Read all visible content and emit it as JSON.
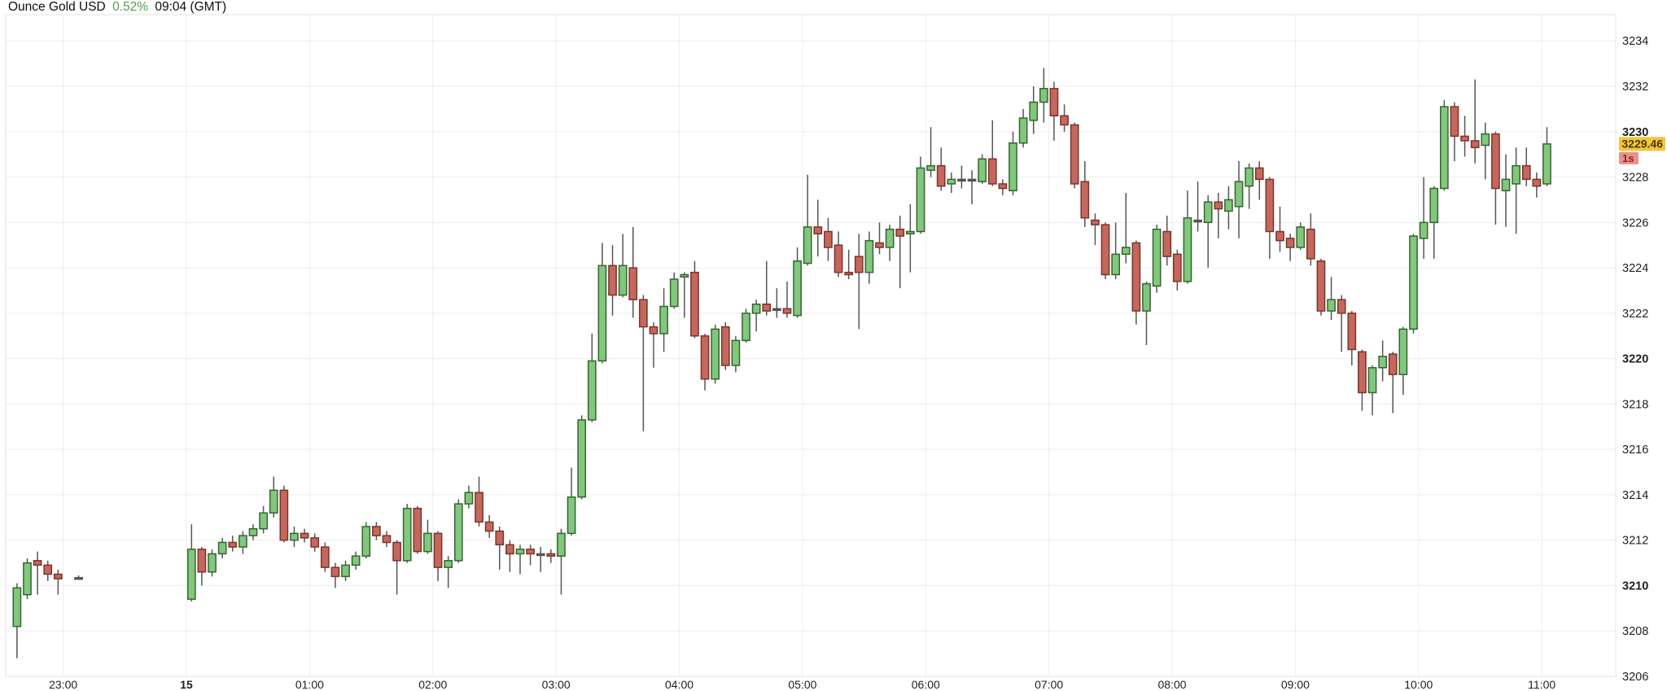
{
  "header": {
    "symbol": "Ounce Gold USD",
    "change": "0.52%",
    "timestamp": "09:04 (GMT)"
  },
  "colors": {
    "up_fill": "#83c77e",
    "up_border": "#33662f",
    "down_fill": "#c4685e",
    "down_border": "#7c332b",
    "doji": "#555555",
    "wick": "#555555",
    "grid": "#ededed",
    "plot_border": "#e3e3e3",
    "axis_text": "#1f1f1f",
    "change_up": "#4fa050",
    "price_tag_bg": "#f3c53b",
    "price_tag_text": "#4d3a00",
    "countdown_bg": "#e79289",
    "countdown_text": "#8c2420"
  },
  "chart_data": {
    "type": "candlestick",
    "title": "Ounce Gold USD",
    "interval_minutes": 5,
    "grid": true,
    "ylim": [
      3206.0,
      3235.3
    ],
    "xlim_minutes": [
      -88,
      696
    ],
    "y_ticks": [
      3234,
      3232,
      3230,
      3228,
      3226,
      3224,
      3222,
      3220,
      3218,
      3216,
      3214,
      3212,
      3210,
      3208,
      3206
    ],
    "y_bold_multiple": 10,
    "x_ticks": [
      {
        "label": "23:00",
        "m": -60,
        "bold": false
      },
      {
        "label": "15",
        "m": 0,
        "bold": true
      },
      {
        "label": "01:00",
        "m": 60,
        "bold": false
      },
      {
        "label": "02:00",
        "m": 120,
        "bold": false
      },
      {
        "label": "03:00",
        "m": 180,
        "bold": false
      },
      {
        "label": "04:00",
        "m": 240,
        "bold": false
      },
      {
        "label": "05:00",
        "m": 300,
        "bold": false
      },
      {
        "label": "06:00",
        "m": 360,
        "bold": false
      },
      {
        "label": "07:00",
        "m": 420,
        "bold": false
      },
      {
        "label": "08:00",
        "m": 480,
        "bold": false
      },
      {
        "label": "09:00",
        "m": 540,
        "bold": false
      },
      {
        "label": "10:00",
        "m": 600,
        "bold": false
      },
      {
        "label": "11:00",
        "m": 660,
        "bold": false
      }
    ],
    "last_price": 3229.46,
    "last_price_label": "3229.46",
    "countdown_label": "1s",
    "columns": [
      "minutes_from_midnight",
      "open",
      "high",
      "low",
      "close"
    ],
    "candles": [
      [
        -85,
        3208.2,
        3210.1,
        3206.8,
        3209.9
      ],
      [
        -80,
        3209.6,
        3211.2,
        3209.4,
        3211.0
      ],
      [
        -75,
        3211.1,
        3211.5,
        3209.6,
        3210.9
      ],
      [
        -70,
        3210.9,
        3211.1,
        3210.2,
        3210.5
      ],
      [
        -65,
        3210.5,
        3210.7,
        3209.6,
        3210.3
      ],
      [
        -55,
        3210.35,
        3210.45,
        3210.3,
        3210.35
      ],
      [
        0,
        3209.4,
        3212.7,
        3209.3,
        3211.6
      ],
      [
        5,
        3211.6,
        3211.7,
        3210.0,
        3210.6
      ],
      [
        10,
        3210.6,
        3211.6,
        3210.4,
        3211.4
      ],
      [
        15,
        3211.4,
        3212.1,
        3211.2,
        3211.9
      ],
      [
        20,
        3211.9,
        3212.2,
        3211.5,
        3211.7
      ],
      [
        25,
        3211.7,
        3212.4,
        3211.4,
        3212.2
      ],
      [
        30,
        3212.2,
        3212.7,
        3212.0,
        3212.5
      ],
      [
        35,
        3212.5,
        3213.5,
        3212.3,
        3213.2
      ],
      [
        40,
        3213.2,
        3214.8,
        3213.0,
        3214.2
      ],
      [
        45,
        3214.2,
        3214.4,
        3211.9,
        3212.0
      ],
      [
        50,
        3212.0,
        3212.6,
        3211.7,
        3212.3
      ],
      [
        55,
        3212.3,
        3212.5,
        3211.9,
        3212.1
      ],
      [
        60,
        3212.1,
        3212.3,
        3211.5,
        3211.7
      ],
      [
        65,
        3211.7,
        3211.9,
        3210.6,
        3210.8
      ],
      [
        70,
        3210.8,
        3211.0,
        3209.9,
        3210.4
      ],
      [
        75,
        3210.4,
        3211.1,
        3210.2,
        3210.9
      ],
      [
        80,
        3210.9,
        3211.5,
        3210.7,
        3211.3
      ],
      [
        85,
        3211.3,
        3212.8,
        3211.2,
        3212.6
      ],
      [
        90,
        3212.6,
        3212.8,
        3212.0,
        3212.2
      ],
      [
        95,
        3212.2,
        3212.4,
        3211.7,
        3211.9
      ],
      [
        100,
        3211.9,
        3212.0,
        3209.6,
        3211.1
      ],
      [
        105,
        3211.1,
        3213.6,
        3211.0,
        3213.4
      ],
      [
        110,
        3213.4,
        3213.5,
        3211.4,
        3211.5
      ],
      [
        115,
        3211.5,
        3212.9,
        3211.4,
        3212.3
      ],
      [
        120,
        3212.3,
        3212.4,
        3210.2,
        3210.8
      ],
      [
        125,
        3210.8,
        3211.3,
        3209.9,
        3211.1
      ],
      [
        130,
        3211.1,
        3213.8,
        3211.0,
        3213.6
      ],
      [
        135,
        3213.6,
        3214.4,
        3213.4,
        3214.1
      ],
      [
        140,
        3214.1,
        3214.8,
        3212.6,
        3212.8
      ],
      [
        145,
        3212.8,
        3213.1,
        3212.1,
        3212.4
      ],
      [
        150,
        3212.4,
        3212.6,
        3210.7,
        3211.8
      ],
      [
        155,
        3211.8,
        3212.0,
        3210.6,
        3211.4
      ],
      [
        160,
        3211.4,
        3211.8,
        3210.5,
        3211.6
      ],
      [
        165,
        3211.6,
        3211.8,
        3210.9,
        3211.4
      ],
      [
        170,
        3211.4,
        3211.7,
        3210.6,
        3211.4
      ],
      [
        175,
        3211.4,
        3211.6,
        3211.0,
        3211.3
      ],
      [
        180,
        3211.3,
        3212.5,
        3209.6,
        3212.3
      ],
      [
        185,
        3212.3,
        3215.2,
        3212.2,
        3213.9
      ],
      [
        190,
        3213.9,
        3217.5,
        3213.8,
        3217.3
      ],
      [
        195,
        3217.3,
        3221.1,
        3217.2,
        3219.9
      ],
      [
        200,
        3219.9,
        3225.1,
        3219.8,
        3224.1
      ],
      [
        205,
        3224.1,
        3225.0,
        3221.9,
        3222.8
      ],
      [
        210,
        3222.8,
        3225.5,
        3222.7,
        3224.1
      ],
      [
        215,
        3224.0,
        3225.8,
        3221.8,
        3222.6
      ],
      [
        220,
        3222.6,
        3222.8,
        3216.8,
        3221.4
      ],
      [
        225,
        3221.4,
        3221.6,
        3219.6,
        3221.1
      ],
      [
        230,
        3221.1,
        3223.1,
        3220.3,
        3222.3
      ],
      [
        235,
        3222.3,
        3223.8,
        3222.2,
        3223.5
      ],
      [
        240,
        3223.6,
        3223.8,
        3221.8,
        3223.7
      ],
      [
        245,
        3223.8,
        3224.3,
        3220.9,
        3221.0
      ],
      [
        250,
        3221.0,
        3221.1,
        3218.6,
        3219.1
      ],
      [
        255,
        3219.1,
        3221.5,
        3218.9,
        3221.3
      ],
      [
        260,
        3221.4,
        3221.6,
        3219.5,
        3219.7
      ],
      [
        265,
        3219.7,
        3221.0,
        3219.4,
        3220.8
      ],
      [
        270,
        3220.8,
        3222.2,
        3220.7,
        3222.0
      ],
      [
        275,
        3222.0,
        3222.6,
        3221.2,
        3222.4
      ],
      [
        280,
        3222.4,
        3224.3,
        3221.9,
        3222.1
      ],
      [
        285,
        3222.2,
        3223.1,
        3221.8,
        3222.2
      ],
      [
        290,
        3222.2,
        3223.4,
        3221.8,
        3222.0
      ],
      [
        295,
        3221.9,
        3224.9,
        3221.8,
        3224.3
      ],
      [
        300,
        3224.2,
        3228.1,
        3224.1,
        3225.8
      ],
      [
        305,
        3225.8,
        3227.0,
        3224.5,
        3225.5
      ],
      [
        310,
        3225.6,
        3226.2,
        3224.3,
        3224.9
      ],
      [
        315,
        3225.0,
        3225.6,
        3223.6,
        3223.8
      ],
      [
        320,
        3223.8,
        3224.8,
        3223.5,
        3223.7
      ],
      [
        325,
        3224.5,
        3225.5,
        3221.3,
        3223.8
      ],
      [
        330,
        3223.8,
        3225.6,
        3223.3,
        3225.2
      ],
      [
        335,
        3225.1,
        3226.0,
        3224.6,
        3224.9
      ],
      [
        340,
        3224.9,
        3225.9,
        3224.3,
        3225.7
      ],
      [
        345,
        3225.7,
        3226.3,
        3223.1,
        3225.4
      ],
      [
        350,
        3225.5,
        3226.8,
        3223.8,
        3225.6
      ],
      [
        355,
        3225.6,
        3228.9,
        3225.5,
        3228.4
      ],
      [
        360,
        3228.3,
        3230.2,
        3228.0,
        3228.5
      ],
      [
        365,
        3228.5,
        3229.3,
        3227.4,
        3227.6
      ],
      [
        370,
        3227.7,
        3228.2,
        3227.3,
        3227.9
      ],
      [
        375,
        3227.9,
        3228.5,
        3227.5,
        3227.9
      ],
      [
        380,
        3227.9,
        3228.3,
        3226.8,
        3227.9
      ],
      [
        385,
        3227.8,
        3229.0,
        3227.7,
        3228.8
      ],
      [
        390,
        3228.8,
        3230.5,
        3227.6,
        3227.7
      ],
      [
        395,
        3227.7,
        3227.9,
        3227.2,
        3227.5
      ],
      [
        400,
        3227.4,
        3230.0,
        3227.2,
        3229.5
      ],
      [
        405,
        3229.5,
        3231.0,
        3229.3,
        3230.6
      ],
      [
        410,
        3230.5,
        3232.0,
        3229.9,
        3231.3
      ],
      [
        415,
        3231.3,
        3232.8,
        3230.4,
        3231.9
      ],
      [
        420,
        3231.9,
        3232.2,
        3229.6,
        3230.7
      ],
      [
        425,
        3230.7,
        3231.2,
        3230.0,
        3230.3
      ],
      [
        430,
        3230.3,
        3230.4,
        3227.5,
        3227.7
      ],
      [
        435,
        3227.8,
        3228.7,
        3225.8,
        3226.2
      ],
      [
        440,
        3226.1,
        3226.4,
        3225.0,
        3225.9
      ],
      [
        445,
        3225.9,
        3226.0,
        3223.5,
        3223.7
      ],
      [
        450,
        3223.7,
        3226.0,
        3223.5,
        3224.6
      ],
      [
        455,
        3224.6,
        3227.3,
        3224.2,
        3224.9
      ],
      [
        460,
        3225.1,
        3225.2,
        3221.5,
        3222.1
      ],
      [
        465,
        3222.1,
        3223.4,
        3220.6,
        3223.3
      ],
      [
        470,
        3223.2,
        3225.9,
        3222.9,
        3225.7
      ],
      [
        475,
        3225.6,
        3226.3,
        3224.1,
        3224.5
      ],
      [
        480,
        3224.6,
        3224.8,
        3223.0,
        3223.4
      ],
      [
        485,
        3223.4,
        3227.4,
        3223.3,
        3226.2
      ],
      [
        490,
        3226.1,
        3227.8,
        3225.6,
        3226.1
      ],
      [
        495,
        3226.0,
        3227.2,
        3224.0,
        3226.9
      ],
      [
        500,
        3226.9,
        3227.3,
        3225.3,
        3226.6
      ],
      [
        505,
        3226.5,
        3227.6,
        3225.7,
        3227.0
      ],
      [
        510,
        3226.7,
        3228.7,
        3225.3,
        3227.8
      ],
      [
        515,
        3227.6,
        3228.6,
        3226.6,
        3228.4
      ],
      [
        520,
        3228.4,
        3228.7,
        3227.0,
        3227.9
      ],
      [
        525,
        3227.9,
        3228.0,
        3224.4,
        3225.6
      ],
      [
        530,
        3225.6,
        3226.7,
        3224.7,
        3225.2
      ],
      [
        535,
        3225.3,
        3225.5,
        3224.3,
        3224.9
      ],
      [
        540,
        3224.9,
        3226.0,
        3224.8,
        3225.8
      ],
      [
        545,
        3225.7,
        3226.4,
        3224.1,
        3224.4
      ],
      [
        550,
        3224.3,
        3224.4,
        3221.9,
        3222.1
      ],
      [
        555,
        3222.1,
        3223.6,
        3221.7,
        3222.6
      ],
      [
        560,
        3222.6,
        3222.8,
        3220.3,
        3222.0
      ],
      [
        565,
        3222.0,
        3222.1,
        3219.7,
        3220.4
      ],
      [
        570,
        3220.3,
        3220.4,
        3217.7,
        3218.5
      ],
      [
        575,
        3218.5,
        3219.7,
        3217.5,
        3219.6
      ],
      [
        580,
        3219.6,
        3220.8,
        3219.0,
        3220.1
      ],
      [
        585,
        3220.2,
        3220.3,
        3217.6,
        3219.3
      ],
      [
        590,
        3219.3,
        3221.4,
        3218.4,
        3221.3
      ],
      [
        595,
        3221.3,
        3225.5,
        3221.1,
        3225.4
      ],
      [
        600,
        3225.3,
        3228.0,
        3224.4,
        3226.0
      ],
      [
        605,
        3226.0,
        3227.6,
        3224.4,
        3227.5
      ],
      [
        610,
        3227.5,
        3231.4,
        3227.4,
        3231.1
      ],
      [
        615,
        3231.1,
        3231.3,
        3228.7,
        3229.8
      ],
      [
        620,
        3229.8,
        3230.7,
        3228.9,
        3229.6
      ],
      [
        625,
        3229.6,
        3232.3,
        3228.6,
        3229.3
      ],
      [
        630,
        3229.4,
        3230.4,
        3227.9,
        3229.9
      ],
      [
        635,
        3229.9,
        3230.0,
        3225.9,
        3227.5
      ],
      [
        640,
        3227.4,
        3229.0,
        3225.8,
        3227.9
      ],
      [
        645,
        3227.7,
        3229.3,
        3225.5,
        3228.5
      ],
      [
        650,
        3228.5,
        3229.3,
        3227.6,
        3227.9
      ],
      [
        655,
        3227.9,
        3228.2,
        3227.1,
        3227.6
      ],
      [
        660,
        3227.7,
        3230.2,
        3227.6,
        3229.46
      ]
    ]
  }
}
